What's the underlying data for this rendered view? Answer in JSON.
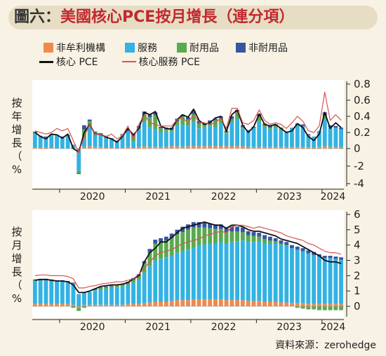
{
  "header": {
    "figure": "圖六：",
    "title": "美國核心PCE按月增長（連分項）"
  },
  "legend": {
    "items": [
      {
        "label": "非牟利機構",
        "color": "#f08a4b",
        "kind": "swatch"
      },
      {
        "label": "服務",
        "color": "#33b2e3",
        "kind": "swatch"
      },
      {
        "label": "耐用品",
        "color": "#5aaa50",
        "kind": "swatch"
      },
      {
        "label": "非耐用品",
        "color": "#3a55a0",
        "kind": "swatch"
      },
      {
        "label": "核心 PCE",
        "color": "#111111",
        "kind": "line"
      },
      {
        "label": "核心服務 PCE",
        "color": "#d9534f",
        "kind": "line"
      }
    ]
  },
  "y_labels": {
    "top": [
      "按",
      "年",
      "增",
      "長",
      "（",
      "%"
    ],
    "bottom": [
      "按",
      "月",
      "增",
      "長",
      "（",
      "%"
    ]
  },
  "source": "資料來源：zerohedge",
  "colors": {
    "background": "#f7f2e4",
    "panel": "#ffffff",
    "nonprofit": "#f08a4b",
    "services": "#33b2e3",
    "durables": "#5aaa50",
    "nondurables": "#3a55a0",
    "core": "#111111",
    "core_services": "#d9534f"
  },
  "chart_data": [
    {
      "type": "bar",
      "panel": "top",
      "x": [
        "2019-08",
        "2019-09",
        "2019-10",
        "2019-11",
        "2019-12",
        "2020-01",
        "2020-02",
        "2020-03",
        "2020-04",
        "2020-05",
        "2020-06",
        "2020-07",
        "2020-08",
        "2020-09",
        "2020-10",
        "2020-11",
        "2020-12",
        "2021-01",
        "2021-02",
        "2021-03",
        "2021-04",
        "2021-05",
        "2021-06",
        "2021-07",
        "2021-08",
        "2021-09",
        "2021-10",
        "2021-11",
        "2021-12",
        "2022-01",
        "2022-02",
        "2022-03",
        "2022-04",
        "2022-05",
        "2022-06",
        "2022-07",
        "2022-08",
        "2022-09",
        "2022-10",
        "2022-11",
        "2022-12",
        "2023-01",
        "2023-02",
        "2023-03",
        "2023-04",
        "2023-05",
        "2023-06",
        "2023-07",
        "2023-08",
        "2023-09",
        "2023-10",
        "2023-11",
        "2023-12",
        "2024-01",
        "2024-02",
        "2024-03",
        "2024-04"
      ],
      "x_ticks": [
        "2020",
        "2021",
        "2022",
        "2023",
        "2024"
      ],
      "ylim": [
        -4,
        0.8
      ],
      "y_ticks": [
        0.8,
        0.6,
        0.4,
        0.2,
        0,
        -2,
        -4
      ],
      "series": [
        {
          "name": "非牟利機構",
          "values": [
            0.01,
            0.01,
            0.01,
            0.01,
            0.0,
            0.0,
            0.0,
            -0.02,
            -0.2,
            0.02,
            0.03,
            0.02,
            0.02,
            0.01,
            0.01,
            0.0,
            0.01,
            0.02,
            0.01,
            0.02,
            0.03,
            0.02,
            0.02,
            0.02,
            0.02,
            0.03,
            0.03,
            0.02,
            0.03,
            0.03,
            0.03,
            0.03,
            0.03,
            0.03,
            0.03,
            0.03,
            0.03,
            0.03,
            0.03,
            0.02,
            0.02,
            0.02,
            0.02,
            0.02,
            0.02,
            0.02,
            0.02,
            0.02,
            0.02,
            0.02,
            0.02,
            0.01,
            0.02,
            0.03,
            0.02,
            0.02,
            0.02
          ]
        },
        {
          "name": "服務",
          "values": [
            0.17,
            0.15,
            0.13,
            0.15,
            0.17,
            0.14,
            0.15,
            0.05,
            -2.4,
            0.1,
            0.25,
            0.15,
            0.14,
            0.12,
            0.12,
            0.1,
            0.14,
            0.2,
            0.08,
            0.22,
            0.3,
            0.25,
            0.22,
            0.18,
            0.2,
            0.18,
            0.25,
            0.28,
            0.25,
            0.3,
            0.22,
            0.24,
            0.25,
            0.24,
            0.28,
            0.16,
            0.3,
            0.34,
            0.22,
            0.2,
            0.24,
            0.32,
            0.25,
            0.22,
            0.24,
            0.2,
            0.18,
            0.24,
            0.28,
            0.26,
            0.15,
            0.14,
            0.2,
            0.33,
            0.25,
            0.24,
            0.22
          ]
        },
        {
          "name": "耐用品",
          "values": [
            0.02,
            -0.01,
            -0.03,
            0.02,
            0.0,
            -0.02,
            0.01,
            -0.04,
            -0.2,
            0.12,
            0.06,
            0.03,
            0.02,
            0.03,
            0.0,
            -0.02,
            0.02,
            0.0,
            0.06,
            0.02,
            0.1,
            0.12,
            0.18,
            0.05,
            0.02,
            0.03,
            0.06,
            0.1,
            0.08,
            0.1,
            0.06,
            0.02,
            0.04,
            0.08,
            0.07,
            0.02,
            0.04,
            0.08,
            0.02,
            -0.02,
            0.0,
            0.06,
            0.02,
            0.02,
            0.02,
            0.03,
            0.0,
            -0.02,
            0.0,
            -0.03,
            -0.02,
            -0.05,
            -0.03,
            0.05,
            -0.04,
            0.0,
            -0.03
          ]
        },
        {
          "name": "非耐用品",
          "values": [
            0.01,
            0.0,
            0.01,
            0.0,
            0.0,
            0.01,
            0.01,
            0.0,
            -0.1,
            0.05,
            0.02,
            0.01,
            0.01,
            0.0,
            0.0,
            0.0,
            0.01,
            0.02,
            0.02,
            0.02,
            0.03,
            0.03,
            0.03,
            0.02,
            0.02,
            0.02,
            0.03,
            0.02,
            0.03,
            0.04,
            0.03,
            0.02,
            0.03,
            0.02,
            0.02,
            0.01,
            0.03,
            0.03,
            0.02,
            0.01,
            0.01,
            0.03,
            0.02,
            0.02,
            0.02,
            0.01,
            0.01,
            0.0,
            0.01,
            0.02,
            0.01,
            0.0,
            0.0,
            0.04,
            0.02,
            0.02,
            0.02
          ]
        },
        {
          "name": "核心 PCE",
          "type": "line",
          "values": [
            0.2,
            0.15,
            0.12,
            0.18,
            0.17,
            0.13,
            0.18,
            0.0,
            -0.4,
            0.2,
            0.3,
            0.18,
            0.18,
            0.14,
            0.12,
            0.08,
            0.15,
            0.25,
            0.17,
            0.25,
            0.45,
            0.42,
            0.46,
            0.28,
            0.25,
            0.24,
            0.36,
            0.42,
            0.39,
            0.49,
            0.35,
            0.3,
            0.32,
            0.38,
            0.4,
            0.21,
            0.42,
            0.48,
            0.29,
            0.2,
            0.27,
            0.43,
            0.3,
            0.28,
            0.3,
            0.25,
            0.2,
            0.22,
            0.31,
            0.26,
            0.15,
            0.1,
            0.18,
            0.45,
            0.25,
            0.32,
            0.26
          ]
        },
        {
          "name": "核心服務 PCE",
          "type": "line",
          "values": [
            0.22,
            0.2,
            0.18,
            0.2,
            0.25,
            0.22,
            0.25,
            0.1,
            -0.45,
            0.15,
            0.3,
            0.18,
            0.18,
            0.15,
            0.18,
            0.12,
            0.16,
            0.28,
            0.12,
            0.3,
            0.42,
            0.32,
            0.3,
            0.28,
            0.28,
            0.28,
            0.36,
            0.38,
            0.32,
            0.42,
            0.33,
            0.32,
            0.3,
            0.32,
            0.38,
            0.25,
            0.5,
            0.5,
            0.32,
            0.3,
            0.35,
            0.48,
            0.35,
            0.3,
            0.32,
            0.3,
            0.25,
            0.32,
            0.4,
            0.34,
            0.22,
            0.2,
            0.28,
            0.7,
            0.35,
            0.42,
            0.35
          ]
        }
      ]
    },
    {
      "type": "bar",
      "panel": "bottom",
      "x": [
        "2019-08",
        "2019-09",
        "2019-10",
        "2019-11",
        "2019-12",
        "2020-01",
        "2020-02",
        "2020-03",
        "2020-04",
        "2020-05",
        "2020-06",
        "2020-07",
        "2020-08",
        "2020-09",
        "2020-10",
        "2020-11",
        "2020-12",
        "2021-01",
        "2021-02",
        "2021-03",
        "2021-04",
        "2021-05",
        "2021-06",
        "2021-07",
        "2021-08",
        "2021-09",
        "2021-10",
        "2021-11",
        "2021-12",
        "2022-01",
        "2022-02",
        "2022-03",
        "2022-04",
        "2022-05",
        "2022-06",
        "2022-07",
        "2022-08",
        "2022-09",
        "2022-10",
        "2022-11",
        "2022-12",
        "2023-01",
        "2023-02",
        "2023-03",
        "2023-04",
        "2023-05",
        "2023-06",
        "2023-07",
        "2023-08",
        "2023-09",
        "2023-10",
        "2023-11",
        "2023-12",
        "2024-01",
        "2024-02",
        "2024-03",
        "2024-04"
      ],
      "x_ticks": [
        "2020",
        "2021",
        "2022",
        "2023",
        "2024"
      ],
      "ylim": [
        -0.5,
        6
      ],
      "y_ticks": [
        6,
        5,
        4,
        3,
        2,
        1,
        0
      ],
      "series": [
        {
          "name": "非牟利機構",
          "values": [
            0.15,
            0.15,
            0.15,
            0.15,
            0.15,
            0.15,
            0.15,
            0.1,
            -0.1,
            0.1,
            0.1,
            0.1,
            0.1,
            0.1,
            0.1,
            0.1,
            0.1,
            0.15,
            0.15,
            0.15,
            0.2,
            0.25,
            0.3,
            0.3,
            0.3,
            0.35,
            0.4,
            0.4,
            0.4,
            0.45,
            0.45,
            0.45,
            0.45,
            0.45,
            0.45,
            0.4,
            0.4,
            0.4,
            0.4,
            0.35,
            0.35,
            0.35,
            0.3,
            0.3,
            0.3,
            0.25,
            0.25,
            0.2,
            0.2,
            0.2,
            0.15,
            0.15,
            0.15,
            0.15,
            0.15,
            0.15,
            0.15
          ]
        },
        {
          "name": "服務",
          "values": [
            1.5,
            1.55,
            1.55,
            1.5,
            1.5,
            1.5,
            1.45,
            1.4,
            0.8,
            0.8,
            0.85,
            0.95,
            1.0,
            1.05,
            1.1,
            1.15,
            1.2,
            1.25,
            1.4,
            1.6,
            2.0,
            2.4,
            2.7,
            2.8,
            2.9,
            2.95,
            3.1,
            3.2,
            3.3,
            3.4,
            3.5,
            3.6,
            3.65,
            3.7,
            3.75,
            3.7,
            3.8,
            3.85,
            3.9,
            3.85,
            3.85,
            3.9,
            3.85,
            3.8,
            3.8,
            3.75,
            3.7,
            3.6,
            3.5,
            3.4,
            3.3,
            3.2,
            3.1,
            3.0,
            3.0,
            2.95,
            2.9
          ]
        },
        {
          "name": "耐用品",
          "values": [
            0.05,
            0.05,
            0.05,
            0.05,
            0.0,
            0.0,
            0.0,
            -0.1,
            -0.2,
            -0.1,
            0.0,
            0.05,
            0.1,
            0.1,
            0.1,
            0.1,
            0.1,
            0.15,
            0.2,
            0.25,
            0.6,
            0.9,
            1.1,
            1.1,
            1.1,
            1.15,
            1.2,
            1.25,
            1.3,
            1.3,
            1.2,
            1.1,
            1.0,
            0.9,
            0.85,
            0.75,
            0.7,
            0.65,
            0.55,
            0.45,
            0.4,
            0.3,
            0.25,
            0.2,
            0.15,
            0.1,
            0.05,
            0.0,
            -0.1,
            -0.15,
            -0.2,
            -0.2,
            -0.25,
            -0.25,
            -0.25,
            -0.25,
            -0.25
          ]
        },
        {
          "name": "非耐用品",
          "values": [
            0.05,
            0.05,
            0.05,
            0.05,
            0.05,
            0.05,
            0.05,
            0.05,
            0.0,
            0.0,
            0.0,
            0.05,
            0.05,
            0.05,
            0.05,
            0.05,
            0.05,
            0.05,
            0.1,
            0.1,
            0.15,
            0.2,
            0.25,
            0.25,
            0.25,
            0.3,
            0.3,
            0.35,
            0.35,
            0.35,
            0.35,
            0.3,
            0.3,
            0.3,
            0.3,
            0.3,
            0.3,
            0.3,
            0.3,
            0.25,
            0.25,
            0.25,
            0.25,
            0.25,
            0.2,
            0.2,
            0.2,
            0.2,
            0.2,
            0.2,
            0.2,
            0.2,
            0.15,
            0.15,
            0.15,
            0.15,
            0.15
          ]
        },
        {
          "name": "核心 PCE",
          "type": "line",
          "values": [
            1.7,
            1.75,
            1.75,
            1.7,
            1.65,
            1.65,
            1.6,
            1.4,
            0.9,
            0.9,
            1.0,
            1.15,
            1.3,
            1.35,
            1.4,
            1.4,
            1.45,
            1.55,
            1.8,
            2.0,
            2.9,
            3.5,
            3.8,
            4.2,
            4.2,
            4.5,
            4.8,
            5.1,
            5.2,
            5.3,
            5.4,
            5.5,
            5.4,
            5.3,
            5.3,
            5.1,
            5.3,
            5.3,
            5.2,
            5.0,
            4.9,
            4.9,
            4.8,
            4.7,
            4.6,
            4.4,
            4.3,
            4.2,
            4.1,
            3.9,
            3.7,
            3.5,
            3.3,
            3.0,
            2.9,
            2.9,
            2.8
          ]
        },
        {
          "name": "核心服務 PCE",
          "type": "line",
          "values": [
            2.0,
            2.05,
            2.05,
            2.0,
            2.0,
            2.0,
            1.95,
            1.8,
            1.2,
            1.2,
            1.3,
            1.35,
            1.45,
            1.5,
            1.55,
            1.6,
            1.6,
            1.7,
            1.8,
            2.1,
            2.5,
            2.9,
            3.3,
            3.5,
            3.6,
            3.7,
            3.9,
            4.1,
            4.2,
            4.3,
            4.4,
            4.6,
            4.7,
            4.8,
            4.9,
            4.8,
            5.2,
            5.3,
            5.3,
            5.2,
            5.1,
            5.2,
            5.1,
            5.0,
            4.9,
            4.8,
            4.6,
            4.5,
            4.4,
            4.3,
            4.1,
            4.0,
            3.8,
            3.6,
            3.5,
            3.5,
            3.4
          ]
        }
      ]
    }
  ]
}
